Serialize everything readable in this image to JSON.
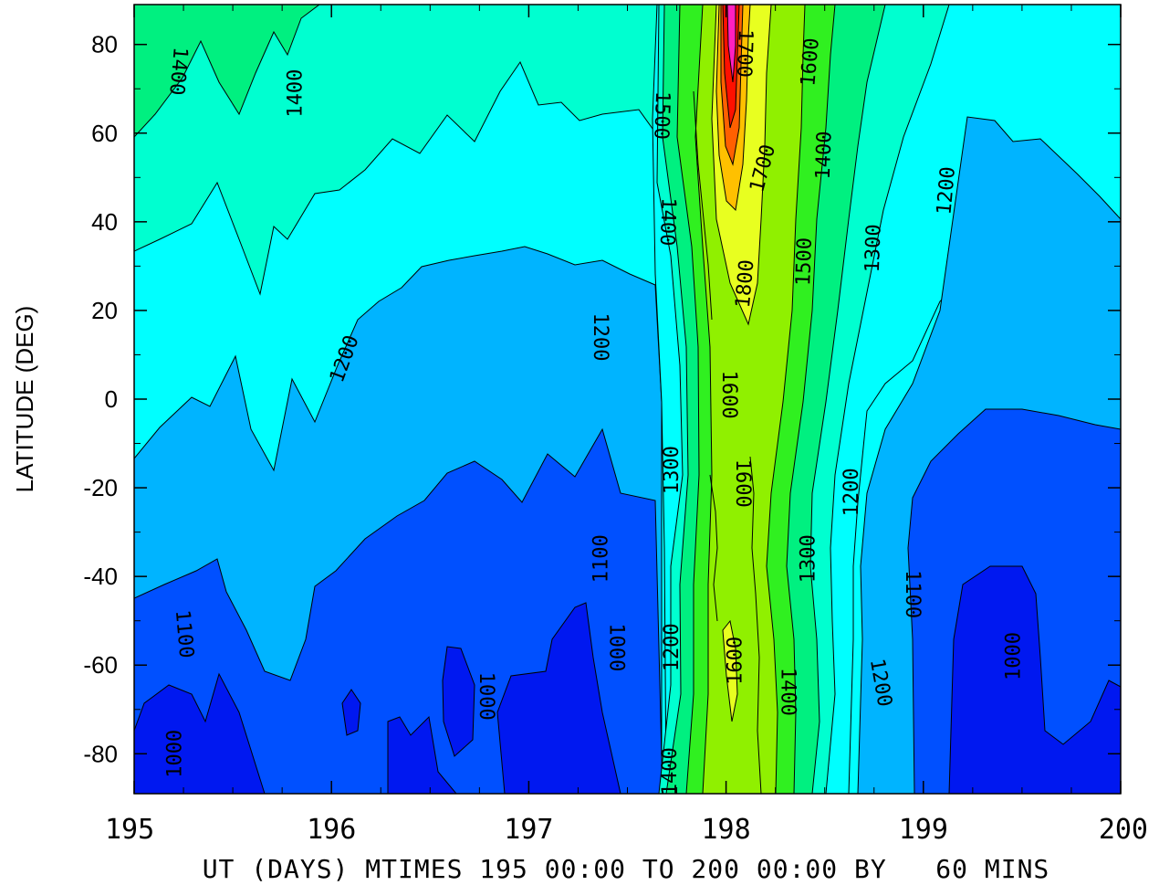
{
  "chart_data": {
    "type": "heatmap",
    "ylabel": "LATITUDE (DEG)",
    "xlabel": "UT (DAYS) MTIMES 195 00:00 TO 200 00:00 BY   60 MINS",
    "xlim": [
      195,
      200
    ],
    "ylim": [
      -89,
      89
    ],
    "x_ticks": [
      "195",
      "196",
      "197",
      "198",
      "199",
      "200"
    ],
    "y_ticks": [
      "80",
      "60",
      "40",
      "20",
      "0",
      "-20",
      "-40",
      "-60",
      "-80"
    ],
    "grid": false,
    "colorscale": [
      {
        "level": 900,
        "color": "#0018f0"
      },
      {
        "level": 1000,
        "color": "#0050ff"
      },
      {
        "level": 1100,
        "color": "#00b4ff"
      },
      {
        "level": 1200,
        "color": "#00ffff"
      },
      {
        "level": 1300,
        "color": "#00ffd0"
      },
      {
        "level": 1400,
        "color": "#00f080"
      },
      {
        "level": 1500,
        "color": "#30f020"
      },
      {
        "level": 1600,
        "color": "#90f000"
      },
      {
        "level": 1700,
        "color": "#e8ff20"
      },
      {
        "level": 1800,
        "color": "#ffc000"
      },
      {
        "level": 1900,
        "color": "#ff6000"
      },
      {
        "level": 2000,
        "color": "#ff1000"
      },
      {
        "level": 2100,
        "color": "#ff20c0"
      }
    ],
    "contour_labels": [
      {
        "text": "1400",
        "x": 195.22,
        "y": 74,
        "angle": 95
      },
      {
        "text": "1400",
        "x": 195.82,
        "y": 69,
        "angle": -90
      },
      {
        "text": "1200",
        "x": 196.07,
        "y": 9,
        "angle": -70
      },
      {
        "text": "1200",
        "x": 197.36,
        "y": 14,
        "angle": 90
      },
      {
        "text": "1100",
        "x": 195.25,
        "y": -53,
        "angle": 85
      },
      {
        "text": "1000",
        "x": 195.21,
        "y": -80,
        "angle": -90
      },
      {
        "text": "1000",
        "x": 196.78,
        "y": -67,
        "angle": 90
      },
      {
        "text": "1000",
        "x": 197.44,
        "y": -56,
        "angle": 90
      },
      {
        "text": "1100",
        "x": 197.37,
        "y": -36,
        "angle": -90
      },
      {
        "text": "1300",
        "x": 197.73,
        "y": -16,
        "angle": -90
      },
      {
        "text": "1200",
        "x": 197.73,
        "y": -56,
        "angle": -90
      },
      {
        "text": "1400",
        "x": 197.72,
        "y": -84,
        "angle": -90
      },
      {
        "text": "1500",
        "x": 197.67,
        "y": 64,
        "angle": 92
      },
      {
        "text": "1400",
        "x": 197.7,
        "y": 40,
        "angle": 92
      },
      {
        "text": "1700",
        "x": 198.09,
        "y": 78,
        "angle": 92
      },
      {
        "text": "1600",
        "x": 198.43,
        "y": 76,
        "angle": -85
      },
      {
        "text": "1700",
        "x": 198.19,
        "y": 52,
        "angle": -75
      },
      {
        "text": "1400",
        "x": 198.5,
        "y": 55,
        "angle": -88
      },
      {
        "text": "1800",
        "x": 198.1,
        "y": 26,
        "angle": -85
      },
      {
        "text": "1500",
        "x": 198.4,
        "y": 31,
        "angle": -88
      },
      {
        "text": "1300",
        "x": 198.75,
        "y": 34,
        "angle": -88
      },
      {
        "text": "1200",
        "x": 199.12,
        "y": 47,
        "angle": -85
      },
      {
        "text": "1600",
        "x": 198.01,
        "y": 1,
        "angle": 90
      },
      {
        "text": "1600",
        "x": 198.08,
        "y": -19,
        "angle": 90
      },
      {
        "text": "1300",
        "x": 198.42,
        "y": -36,
        "angle": -90
      },
      {
        "text": "1200",
        "x": 198.64,
        "y": -21,
        "angle": -90
      },
      {
        "text": "1100",
        "x": 198.94,
        "y": -44,
        "angle": 90
      },
      {
        "text": "1600",
        "x": 198.05,
        "y": -59,
        "angle": -90
      },
      {
        "text": "1400",
        "x": 198.31,
        "y": -66,
        "angle": 90
      },
      {
        "text": "1200",
        "x": 198.78,
        "y": -64,
        "angle": 80
      },
      {
        "text": "1000",
        "x": 199.46,
        "y": -58,
        "angle": -90
      }
    ]
  }
}
